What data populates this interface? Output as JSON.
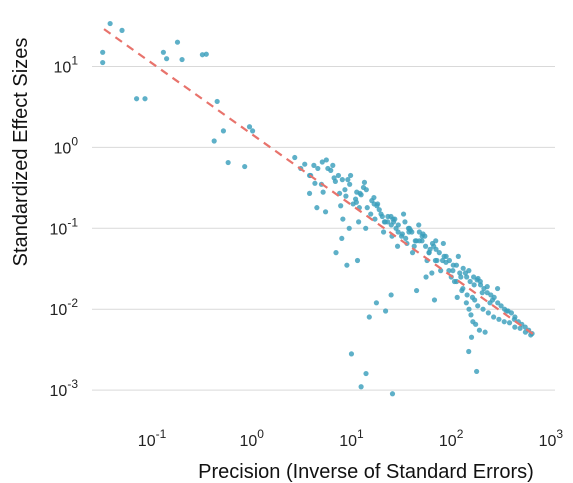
{
  "chart_data": {
    "type": "scatter",
    "title": "",
    "xlabel": "Precision (Inverse of Standard Errors)",
    "ylabel": "Standardized Effect Sizes",
    "xscale": "log",
    "yscale": "log",
    "xlim": [
      0.025,
      1100
    ],
    "ylim": [
      0.00037,
      50
    ],
    "grid": "horizontal",
    "x_ticks": [
      {
        "value": 0.1,
        "base": "10",
        "exp": "-1"
      },
      {
        "value": 1,
        "base": "10",
        "exp": "0"
      },
      {
        "value": 10,
        "base": "10",
        "exp": "1"
      },
      {
        "value": 100,
        "base": "10",
        "exp": "2"
      },
      {
        "value": 1000,
        "base": "10",
        "exp": "3"
      }
    ],
    "y_ticks": [
      {
        "value": 10,
        "base": "10",
        "exp": "1"
      },
      {
        "value": 1,
        "base": "10",
        "exp": "0"
      },
      {
        "value": 0.1,
        "base": "10",
        "exp": "-1"
      },
      {
        "value": 0.01,
        "base": "10",
        "exp": "-2"
      },
      {
        "value": 0.001,
        "base": "10",
        "exp": "-3"
      }
    ],
    "colors": {
      "points": "#3a9fbc",
      "fit": "#e8736c",
      "grid": "#d9d9d9"
    },
    "fit_line": {
      "x": [
        0.033,
        700
      ],
      "y": [
        29,
        0.0047
      ]
    },
    "points": {
      "x": [
        0.038,
        0.05,
        0.032,
        0.032,
        0.13,
        0.18,
        0.14,
        0.2,
        0.32,
        0.35,
        0.07,
        0.085,
        0.45,
        0.52,
        0.42,
        0.58,
        0.85,
        0.95,
        1.02,
        2.7,
        3.1,
        3.4,
        3.9,
        4.3,
        4.6,
        5.1,
        5.6,
        6.2,
        6.9,
        7.4,
        8.1,
        8.8,
        9.6,
        10.4,
        11.3,
        12.2,
        13.2,
        14.4,
        15.6,
        16.9,
        18.3,
        19.8,
        21.4,
        23.2,
        25.1,
        27.2,
        29.4,
        31.8,
        34.4,
        37.3,
        40.3,
        43.7,
        47.3,
        51.2,
        55.4,
        60,
        65,
        70,
        76,
        82,
        89,
        96,
        104,
        113,
        122,
        132,
        143,
        155,
        168,
        182,
        197,
        213,
        230,
        250,
        270,
        293,
        317,
        343,
        372,
        402,
        436,
        472,
        511,
        553,
        599,
        648,
        3.8,
        4.2,
        5,
        5.8,
        6.7,
        7.6,
        8.6,
        9.8,
        11,
        12.5,
        14.1,
        16,
        18,
        20.4,
        23.1,
        26.1,
        29.5,
        33.3,
        37.7,
        42.6,
        48.1,
        54.4,
        61.5,
        69.5,
        78.5,
        88.7,
        100.2,
        113.3,
        128,
        144.6,
        163.5,
        184.7,
        208.8,
        236,
        266.6,
        301.3,
        340.6,
        384.9,
        435,
        491.6,
        555.6,
        628,
        9.5,
        11.8,
        13.9,
        17.2,
        21.8,
        24.9,
        32.4,
        38.1,
        44.8,
        52.2,
        57.3,
        66.8,
        83.5,
        108,
        131,
        142,
        151,
        158,
        165,
        176,
        192,
        219,
        7,
        9,
        11.5,
        25,
        85,
        115,
        12.5,
        22,
        45,
        68,
        150,
        160,
        180,
        14,
        10,
        3.8,
        4.5,
        8.2,
        11.2,
        13.5,
        16.8,
        19,
        25.5,
        29,
        36,
        41,
        56,
        64,
        72,
        95,
        125,
        172,
        205,
        245,
        292,
        360,
        430,
        6.5,
        9.2,
        12,
        28,
        35,
        48,
        60,
        105,
        139,
        170,
        196,
        260,
        5.2,
        7.8,
        26.5,
        39,
        51,
        70.5,
        118,
        150.5,
        186,
        230,
        21,
        15.1,
        17.8,
        5.5,
        8,
        25.8
      ],
      "y": [
        34,
        28,
        15,
        11.2,
        15,
        20,
        12.5,
        12.2,
        14,
        14.2,
        4,
        4,
        3.7,
        1.6,
        1.2,
        0.65,
        0.58,
        1.8,
        1.6,
        0.75,
        0.55,
        0.62,
        0.45,
        0.36,
        0.55,
        0.66,
        0.7,
        0.52,
        0.38,
        0.45,
        0.4,
        0.25,
        0.35,
        0.2,
        0.28,
        0.27,
        0.32,
        0.18,
        0.15,
        0.2,
        0.2,
        0.15,
        0.12,
        0.14,
        0.11,
        0.13,
        0.09,
        0.08,
        0.12,
        0.1,
        0.09,
        0.07,
        0.11,
        0.08,
        0.06,
        0.05,
        0.065,
        0.07,
        0.05,
        0.04,
        0.045,
        0.04,
        0.03,
        0.035,
        0.028,
        0.032,
        0.025,
        0.022,
        0.025,
        0.023,
        0.02,
        0.018,
        0.016,
        0.015,
        0.014,
        0.012,
        0.011,
        0.01,
        0.0095,
        0.009,
        0.008,
        0.007,
        0.0065,
        0.006,
        0.0055,
        0.005,
        0.45,
        0.6,
        0.35,
        0.55,
        0.42,
        0.27,
        0.3,
        0.45,
        0.23,
        0.26,
        0.3,
        0.22,
        0.19,
        0.14,
        0.12,
        0.13,
        0.11,
        0.15,
        0.09,
        0.06,
        0.07,
        0.08,
        0.055,
        0.04,
        0.03,
        0.038,
        0.025,
        0.022,
        0.017,
        0.015,
        0.014,
        0.011,
        0.01,
        0.009,
        0.008,
        0.0075,
        0.007,
        0.0068,
        0.006,
        0.0058,
        0.0052,
        0.0048,
        0.1,
        0.12,
        0.1,
        0.13,
        0.12,
        0.14,
        0.085,
        0.1,
        0.07,
        0.085,
        0.04,
        0.06,
        0.065,
        0.022,
        0.018,
        0.012,
        0.01,
        0.0085,
        0.007,
        0.0065,
        0.0055,
        0.0052,
        0.05,
        0.035,
        0.04,
        0.015,
        0.045,
        0.014,
        0.0011,
        0.0095,
        0.017,
        0.013,
        0.003,
        0.0045,
        0.0017,
        0.0016,
        0.0028,
        0.27,
        0.18,
        0.13,
        0.21,
        0.37,
        0.24,
        0.17,
        0.08,
        0.06,
        0.065,
        0.05,
        0.025,
        0.028,
        0.04,
        0.03,
        0.025,
        0.013,
        0.016,
        0.012,
        0.018,
        0.0095,
        0.0075,
        0.6,
        0.4,
        0.18,
        0.1,
        0.075,
        0.09,
        0.05,
        0.035,
        0.028,
        0.02,
        0.022,
        0.013,
        0.28,
        0.19,
        0.12,
        0.095,
        0.07,
        0.055,
        0.045,
        0.03,
        0.024,
        0.019,
        0.09,
        0.008,
        0.012,
        0.16,
        0.075,
        0.0009
      ]
    }
  }
}
